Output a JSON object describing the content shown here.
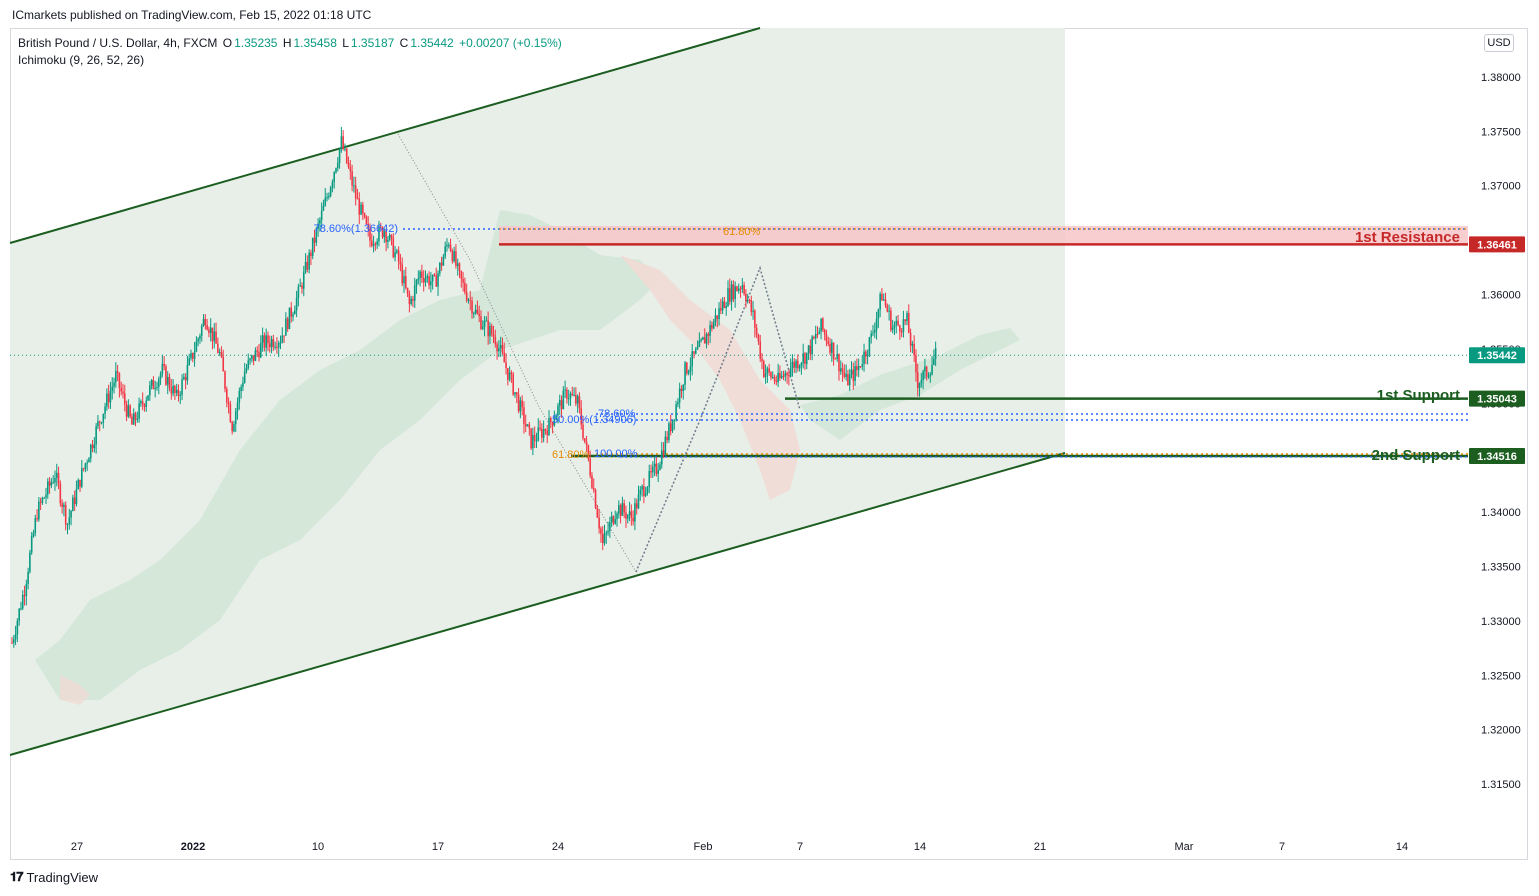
{
  "header": {
    "publisher": "ICmarkets published on TradingView.com, Feb 15, 2022 01:18 UTC"
  },
  "legend": {
    "symbol": "British Pound / U.S. Dollar, 4h, FXCM",
    "open_label": "O",
    "open": "1.35235",
    "high_label": "H",
    "high": "1.35458",
    "low_label": "L",
    "low": "1.35187",
    "close_label": "C",
    "close": "1.35442",
    "change": "+0.00207 (+0.15%)",
    "indicator": "Ichimoku (9, 26, 52, 26)"
  },
  "currency": "USD",
  "footer": {
    "brand": "TradingView"
  },
  "colors": {
    "up": "#089981",
    "down": "#f23645",
    "channel": "#1b5e20",
    "resistance": "#c62828",
    "support": "#1b5e20",
    "fib_blue": "#2962ff",
    "fib_orange": "#e68a00"
  },
  "chart_data": {
    "type": "candlestick",
    "ylim": [
      1.3105,
      1.3845
    ],
    "y_ticks": [
      "1.38000",
      "1.37500",
      "1.37000",
      "1.36500",
      "1.36000",
      "1.35500",
      "1.35000",
      "1.34500",
      "1.34000",
      "1.33500",
      "1.33000",
      "1.32500",
      "1.32000",
      "1.31500"
    ],
    "x_ticks": [
      "27",
      "2022",
      "10",
      "17",
      "24",
      "Feb",
      "7",
      "14",
      "21",
      "Mar",
      "7",
      "14"
    ],
    "price_labels": [
      {
        "value": "1.36461",
        "role": "resistance"
      },
      {
        "value": "1.35442",
        "role": "last"
      },
      {
        "value": "1.35043",
        "role": "support"
      },
      {
        "value": "1.34516",
        "role": "support"
      }
    ],
    "annotations": {
      "resistance_1": "1st Resistance",
      "support_1": "1st Support",
      "support_2": "2nd Support",
      "fib_786": "78.60%(1.36642)",
      "fib_618_top": "61.80%",
      "fib_500": "50.00%(1.34906)",
      "fib_786_small": "78.60%",
      "fib_618_bottom": "61.80%",
      "fib_100": "100.00%"
    },
    "path_points": [
      [
        0,
        1.328
      ],
      [
        7,
        1.333
      ],
      [
        14,
        1.34
      ],
      [
        24,
        1.3435
      ],
      [
        31,
        1.339
      ],
      [
        38,
        1.343
      ],
      [
        48,
        1.348
      ],
      [
        58,
        1.3525
      ],
      [
        67,
        1.348
      ],
      [
        76,
        1.351
      ],
      [
        84,
        1.353
      ],
      [
        92,
        1.3505
      ],
      [
        100,
        1.354
      ],
      [
        108,
        1.358
      ],
      [
        116,
        1.3545
      ],
      [
        123,
        1.348
      ],
      [
        130,
        1.353
      ],
      [
        140,
        1.3555
      ],
      [
        150,
        1.356
      ],
      [
        160,
        1.36
      ],
      [
        168,
        1.3645
      ],
      [
        176,
        1.369
      ],
      [
        184,
        1.374
      ],
      [
        192,
        1.369
      ],
      [
        200,
        1.365
      ],
      [
        208,
        1.366
      ],
      [
        216,
        1.363
      ],
      [
        222,
        1.359
      ],
      [
        228,
        1.362
      ],
      [
        236,
        1.361
      ],
      [
        244,
        1.365
      ],
      [
        250,
        1.3615
      ],
      [
        260,
        1.358
      ],
      [
        270,
        1.356
      ],
      [
        280,
        1.3515
      ],
      [
        290,
        1.3465
      ],
      [
        300,
        1.348
      ],
      [
        310,
        1.351
      ],
      [
        316,
        1.35
      ],
      [
        324,
        1.343
      ],
      [
        330,
        1.337
      ],
      [
        338,
        1.3405
      ],
      [
        346,
        1.3395
      ],
      [
        352,
        1.342
      ],
      [
        360,
        1.344
      ],
      [
        368,
        1.348
      ],
      [
        376,
        1.353
      ],
      [
        384,
        1.355
      ],
      [
        392,
        1.3575
      ],
      [
        400,
        1.36
      ],
      [
        408,
        1.361
      ],
      [
        414,
        1.358
      ],
      [
        420,
        1.353
      ],
      [
        428,
        1.352
      ],
      [
        436,
        1.3535
      ],
      [
        444,
        1.3545
      ],
      [
        452,
        1.357
      ],
      [
        460,
        1.3545
      ],
      [
        466,
        1.352
      ],
      [
        472,
        1.353
      ],
      [
        480,
        1.356
      ],
      [
        486,
        1.36
      ],
      [
        492,
        1.357
      ],
      [
        500,
        1.3575
      ],
      [
        506,
        1.352
      ],
      [
        512,
        1.353
      ],
      [
        516,
        1.3544
      ]
    ]
  }
}
